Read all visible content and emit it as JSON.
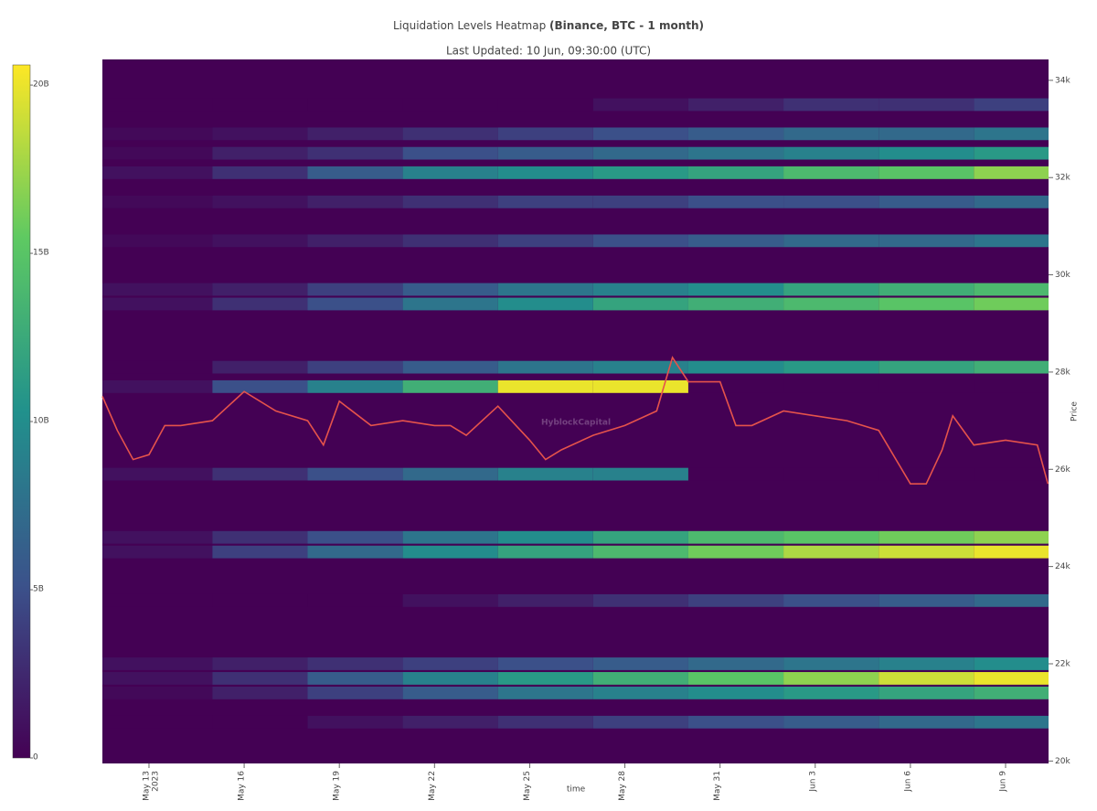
{
  "chart_data": {
    "type": "heatmap",
    "title": "Liquidation Levels Heatmap",
    "title_bold": "(Binance, BTC - 1 month)",
    "subtitle": "Last Updated: 10 Jun, 09:30:00 (UTC)",
    "watermark": "HyblockCapital",
    "x_label": "time",
    "y_label": "Price",
    "xlim": [
      "2023-05-11T12:45",
      "2023-06-10T08:30"
    ],
    "xticks": [
      {
        "value": "2023-05-13T00:00",
        "label": "May 13"
      },
      {
        "value": "2023-05-16T00:00",
        "label": "May 16"
      },
      {
        "value": "2023-05-19T00:00",
        "label": "May 19"
      },
      {
        "value": "2023-05-22T00:00",
        "label": "May 22"
      },
      {
        "value": "2023-05-25T00:00",
        "label": "May 25"
      },
      {
        "value": "2023-05-28T00:00",
        "label": "May 28"
      },
      {
        "value": "2023-05-31T00:00",
        "label": "May 31"
      },
      {
        "value": "2023-06-03T00:00",
        "label": "Jun 3"
      },
      {
        "value": "2023-06-06T00:00",
        "label": "Jun 6"
      },
      {
        "value": "2023-06-09T00:00",
        "label": "Jun 9"
      }
    ],
    "xtick_year": "2023",
    "ylim": [
      19950,
      34430
    ],
    "yticks": [
      {
        "value": 20000,
        "label": "20k"
      },
      {
        "value": 22000,
        "label": "22k"
      },
      {
        "value": 24000,
        "label": "24k"
      },
      {
        "value": 26000,
        "label": "26k"
      },
      {
        "value": 28000,
        "label": "28k"
      },
      {
        "value": 30000,
        "label": "30k"
      },
      {
        "value": 32000,
        "label": "32k"
      },
      {
        "value": 34000,
        "label": "34k"
      }
    ],
    "colorscale": [
      "#440154",
      "#3b528b",
      "#21918c",
      "#5ec962",
      "#fde725"
    ],
    "clim": [
      0,
      20600000000.0
    ],
    "cticks": [
      {
        "value": 0,
        "label": "0"
      },
      {
        "value": 5000000000.0,
        "label": "5B"
      },
      {
        "value": 10000000000.0,
        "label": "10B"
      },
      {
        "value": 15000000000.0,
        "label": "15B"
      },
      {
        "value": 20000000000.0,
        "label": "20B"
      }
    ],
    "heatmap": {
      "x": [
        "2023-05-11T12:45",
        "2023-05-15T00:00",
        "2023-05-18T00:00",
        "2023-05-21T00:00",
        "2023-05-24T00:00",
        "2023-05-27T00:00",
        "2023-05-30T00:00",
        "2023-06-02T00:00",
        "2023-06-05T00:00",
        "2023-06-08T00:00"
      ],
      "rows": [
        {
          "price": 33500,
          "values": [
            0,
            0,
            0,
            0,
            0,
            1000000000.0,
            2000000000.0,
            3000000000.0,
            3000000000.0,
            4000000000.0
          ]
        },
        {
          "price": 32900,
          "values": [
            500000000.0,
            1000000000.0,
            2000000000.0,
            3000000000.0,
            4000000000.0,
            5000000000.0,
            6000000000.0,
            7000000000.0,
            7000000000.0,
            8000000000.0
          ]
        },
        {
          "price": 32500,
          "values": [
            500000000.0,
            2000000000.0,
            3000000000.0,
            5000000000.0,
            6000000000.0,
            7000000000.0,
            8000000000.0,
            9000000000.0,
            10000000000.0,
            11000000000.0
          ]
        },
        {
          "price": 32100,
          "values": [
            1000000000.0,
            3000000000.0,
            6000000000.0,
            9000000000.0,
            10000000000.0,
            11000000000.0,
            12000000000.0,
            14000000000.0,
            15000000000.0,
            17000000000.0
          ]
        },
        {
          "price": 31500,
          "values": [
            500000000.0,
            1000000000.0,
            2000000000.0,
            3000000000.0,
            4000000000.0,
            4000000000.0,
            5000000000.0,
            5000000000.0,
            6000000000.0,
            7000000000.0
          ]
        },
        {
          "price": 30700,
          "values": [
            500000000.0,
            1000000000.0,
            2000000000.0,
            3000000000.0,
            4000000000.0,
            5000000000.0,
            6000000000.0,
            7000000000.0,
            7000000000.0,
            8000000000.0
          ]
        },
        {
          "price": 29700,
          "values": [
            1000000000.0,
            2000000000.0,
            4000000000.0,
            6000000000.0,
            8000000000.0,
            9000000000.0,
            10000000000.0,
            12000000000.0,
            13000000000.0,
            14000000000.0
          ]
        },
        {
          "price": 29400,
          "values": [
            1000000000.0,
            3000000000.0,
            5000000000.0,
            8000000000.0,
            10000000000.0,
            12000000000.0,
            13000000000.0,
            14000000000.0,
            15000000000.0,
            16000000000.0
          ]
        },
        {
          "price": 28100,
          "values": [
            0,
            2000000000.0,
            4000000000.0,
            6000000000.0,
            8000000000.0,
            9000000000.0,
            10000000000.0,
            11000000000.0,
            12000000000.0,
            13000000000.0
          ]
        },
        {
          "price": 27700,
          "values": [
            1000000000.0,
            5000000000.0,
            9000000000.0,
            13000000000.0,
            20000000000.0,
            20000000000.0,
            0,
            0,
            0,
            0
          ]
        },
        {
          "price": 25900,
          "values": [
            1000000000.0,
            3000000000.0,
            5000000000.0,
            7000000000.0,
            9000000000.0,
            9000000000.0,
            0,
            0,
            0,
            0
          ]
        },
        {
          "price": 24600,
          "values": [
            1000000000.0,
            3000000000.0,
            5000000000.0,
            8000000000.0,
            10000000000.0,
            12000000000.0,
            14000000000.0,
            15000000000.0,
            16000000000.0,
            17000000000.0
          ]
        },
        {
          "price": 24300,
          "values": [
            1000000000.0,
            4000000000.0,
            7000000000.0,
            10000000000.0,
            12000000000.0,
            14000000000.0,
            16000000000.0,
            18000000000.0,
            19000000000.0,
            20000000000.0
          ]
        },
        {
          "price": 23300,
          "values": [
            0,
            0,
            0,
            1000000000.0,
            2000000000.0,
            3000000000.0,
            4000000000.0,
            5000000000.0,
            6000000000.0,
            7000000000.0
          ]
        },
        {
          "price": 22000,
          "values": [
            1000000000.0,
            2000000000.0,
            3000000000.0,
            4000000000.0,
            5000000000.0,
            6000000000.0,
            7000000000.0,
            8000000000.0,
            9000000000.0,
            10000000000.0
          ]
        },
        {
          "price": 21700,
          "values": [
            1000000000.0,
            3000000000.0,
            6000000000.0,
            9000000000.0,
            11000000000.0,
            13000000000.0,
            15000000000.0,
            17000000000.0,
            19000000000.0,
            20000000000.0
          ]
        },
        {
          "price": 21400,
          "values": [
            500000000.0,
            2000000000.0,
            4000000000.0,
            6000000000.0,
            8000000000.0,
            9000000000.0,
            10000000000.0,
            11000000000.0,
            12000000000.0,
            13000000000.0
          ]
        },
        {
          "price": 20800,
          "values": [
            0,
            0,
            1000000000.0,
            2000000000.0,
            3000000000.0,
            4000000000.0,
            5000000000.0,
            6000000000.0,
            7000000000.0,
            8000000000.0
          ]
        }
      ]
    },
    "price": {
      "color": "#e5534b",
      "x": [
        "2023-05-11T12:45",
        "2023-05-12T00:00",
        "2023-05-12T12:00",
        "2023-05-13T00:00",
        "2023-05-13T12:00",
        "2023-05-14T00:00",
        "2023-05-15T00:00",
        "2023-05-16T00:00",
        "2023-05-17T00:00",
        "2023-05-18T00:00",
        "2023-05-18T12:00",
        "2023-05-19T00:00",
        "2023-05-20T00:00",
        "2023-05-21T00:00",
        "2023-05-22T00:00",
        "2023-05-22T12:00",
        "2023-05-23T00:00",
        "2023-05-24T00:00",
        "2023-05-25T00:00",
        "2023-05-25T12:00",
        "2023-05-26T00:00",
        "2023-05-27T00:00",
        "2023-05-28T00:00",
        "2023-05-29T00:00",
        "2023-05-29T12:00",
        "2023-05-30T00:00",
        "2023-05-31T00:00",
        "2023-05-31T12:00",
        "2023-06-01T00:00",
        "2023-06-02T00:00",
        "2023-06-03T00:00",
        "2023-06-04T00:00",
        "2023-06-05T00:00",
        "2023-06-06T00:00",
        "2023-06-06T12:00",
        "2023-06-07T00:00",
        "2023-06-07T08:00",
        "2023-06-08T00:00",
        "2023-06-09T00:00",
        "2023-06-10T00:00",
        "2023-06-10T08:00"
      ],
      "y": [
        27500,
        26800,
        26200,
        26300,
        26900,
        26900,
        27000,
        27600,
        27200,
        27000,
        26500,
        27400,
        26900,
        27000,
        26900,
        26900,
        26700,
        27300,
        26600,
        26200,
        26400,
        26700,
        26900,
        27200,
        28300,
        27800,
        27800,
        26900,
        26900,
        27200,
        27100,
        27000,
        26800,
        25700,
        25700,
        26400,
        27100,
        26500,
        26600,
        26500,
        25700
      ]
    }
  }
}
